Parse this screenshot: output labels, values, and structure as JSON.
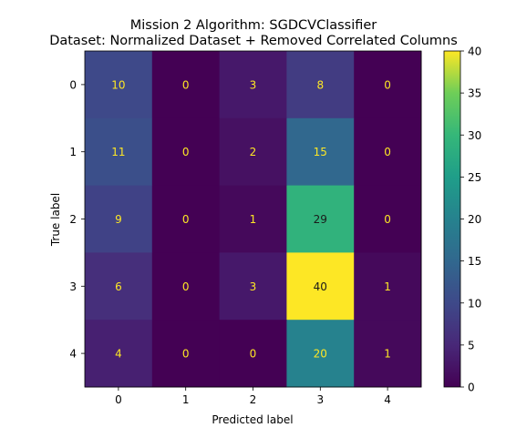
{
  "chart_data": {
    "type": "heatmap",
    "title": "Mission 2 Algorithm: SGDCVClassifier",
    "subtitle": "Dataset: Normalized Dataset + Removed Correlated Columns",
    "xlabel": "Predicted label",
    "ylabel": "True label",
    "x_categories": [
      "0",
      "1",
      "2",
      "3",
      "4"
    ],
    "y_categories": [
      "0",
      "1",
      "2",
      "3",
      "4"
    ],
    "values": [
      [
        10,
        0,
        3,
        8,
        0
      ],
      [
        11,
        0,
        2,
        15,
        0
      ],
      [
        9,
        0,
        1,
        29,
        0
      ],
      [
        6,
        0,
        3,
        40,
        1
      ],
      [
        4,
        0,
        0,
        20,
        1
      ]
    ],
    "colormap": "viridis",
    "vmin": 0,
    "vmax": 40,
    "colorbar_ticks": [
      "0",
      "5",
      "10",
      "15",
      "20",
      "25",
      "30",
      "35",
      "40"
    ],
    "label_color_light": "#fde725",
    "label_color_dark": "#1a1a1a"
  }
}
